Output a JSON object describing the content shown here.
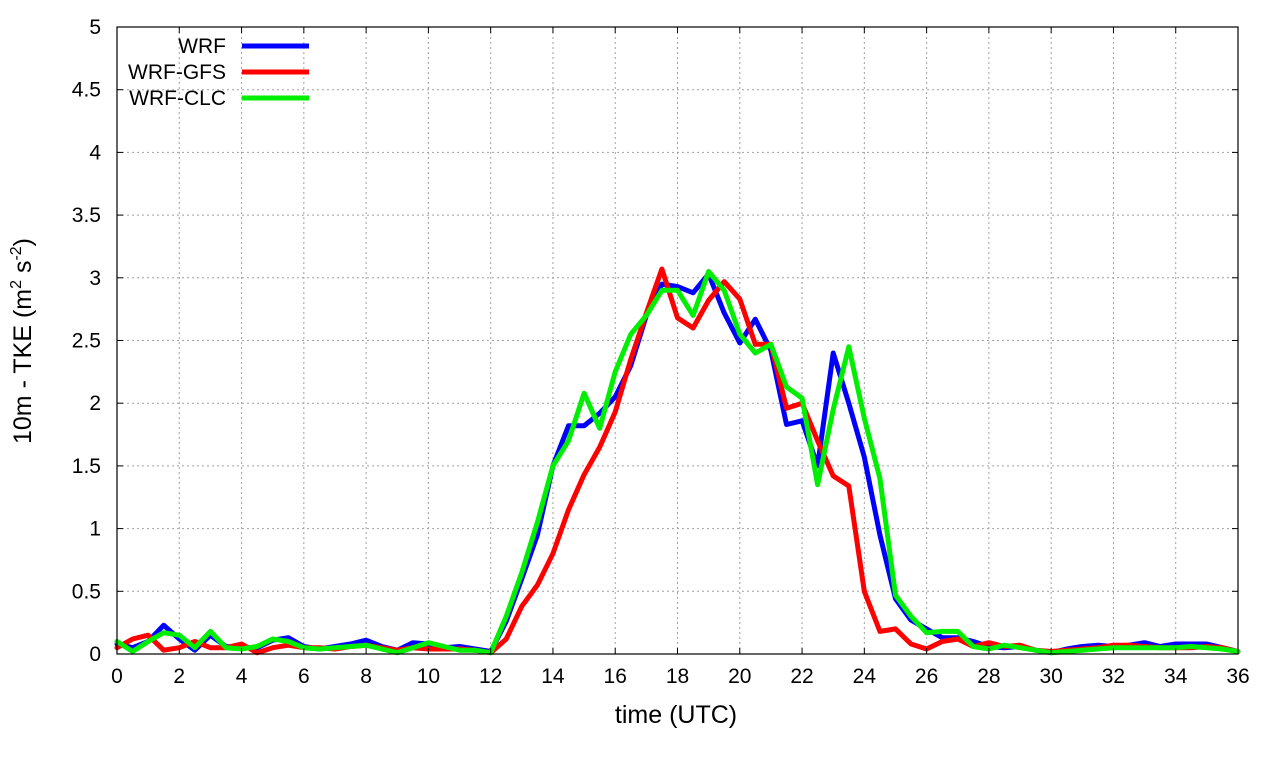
{
  "chart_data": {
    "type": "line",
    "title": "",
    "xlabel": "time (UTC)",
    "ylabel": {
      "prefix": "10m - TKE (m",
      "exp1": "2",
      "middle": " s",
      "exp2": "-2",
      "suffix": ")"
    },
    "xlim": [
      0,
      36
    ],
    "ylim": [
      0,
      5
    ],
    "grid": true,
    "legend_position": "top-left",
    "x_ticks": [
      "0",
      "2",
      "4",
      "6",
      "8",
      "10",
      "12",
      "14",
      "16",
      "18",
      "20",
      "22",
      "24",
      "26",
      "28",
      "30",
      "32",
      "34",
      "36"
    ],
    "y_ticks": [
      "0",
      "0.5",
      "1",
      "1.5",
      "2",
      "2.5",
      "3",
      "3.5",
      "4",
      "4.5",
      "5"
    ],
    "x": [
      0,
      0.5,
      1,
      1.5,
      2,
      2.5,
      3,
      3.5,
      4,
      4.5,
      5,
      5.5,
      6,
      6.5,
      7,
      7.5,
      8,
      8.5,
      9,
      9.5,
      10,
      10.5,
      11,
      11.5,
      12,
      12.5,
      13,
      13.5,
      14,
      14.5,
      15,
      15.5,
      16,
      16.5,
      17,
      17.5,
      18,
      18.5,
      19,
      19.5,
      20,
      20.5,
      21,
      21.5,
      22,
      22.5,
      23,
      23.5,
      24,
      24.5,
      25,
      25.5,
      26,
      26.5,
      27,
      27.5,
      28,
      28.5,
      29,
      29.5,
      30,
      30.5,
      31,
      31.5,
      32,
      32.5,
      33,
      33.5,
      34,
      34.5,
      35,
      35.5,
      36
    ],
    "series": [
      {
        "name": "WRF",
        "color": "#0000ff",
        "values": [
          0.08,
          0.05,
          0.1,
          0.23,
          0.12,
          0.03,
          0.15,
          0.06,
          0.05,
          0.05,
          0.11,
          0.13,
          0.06,
          0.04,
          0.06,
          0.08,
          0.11,
          0.06,
          0.03,
          0.09,
          0.08,
          0.05,
          0.06,
          0.04,
          0.02,
          0.26,
          0.6,
          0.95,
          1.5,
          1.82,
          1.82,
          1.92,
          2.05,
          2.3,
          2.7,
          2.95,
          2.93,
          2.88,
          3.03,
          2.72,
          2.48,
          2.67,
          2.42,
          1.83,
          1.86,
          1.5,
          2.4,
          2.0,
          1.57,
          0.95,
          0.44,
          0.27,
          0.2,
          0.13,
          0.13,
          0.1,
          0.06,
          0.05,
          0.06,
          0.03,
          0.01,
          0.04,
          0.06,
          0.07,
          0.06,
          0.07,
          0.09,
          0.06,
          0.08,
          0.08,
          0.08,
          0.05,
          0.02
        ]
      },
      {
        "name": "WRF-GFS",
        "color": "#ff0000",
        "values": [
          0.05,
          0.12,
          0.15,
          0.03,
          0.05,
          0.1,
          0.05,
          0.05,
          0.08,
          0.01,
          0.05,
          0.07,
          0.05,
          0.05,
          0.04,
          0.06,
          0.07,
          0.05,
          0.03,
          0.05,
          0.04,
          0.04,
          0.04,
          0.03,
          0.01,
          0.12,
          0.38,
          0.55,
          0.8,
          1.15,
          1.43,
          1.65,
          1.93,
          2.35,
          2.72,
          3.07,
          2.68,
          2.6,
          2.82,
          2.97,
          2.83,
          2.47,
          2.47,
          1.96,
          2.0,
          1.7,
          1.42,
          1.34,
          0.5,
          0.18,
          0.2,
          0.08,
          0.04,
          0.1,
          0.12,
          0.06,
          0.09,
          0.06,
          0.07,
          0.03,
          0.02,
          0.03,
          0.04,
          0.05,
          0.07,
          0.07,
          0.06,
          0.05,
          0.05,
          0.05,
          0.06,
          0.05,
          0.02
        ]
      },
      {
        "name": "WRF-CLC",
        "color": "#00ee00",
        "values": [
          0.1,
          0.02,
          0.1,
          0.17,
          0.15,
          0.05,
          0.18,
          0.05,
          0.04,
          0.06,
          0.12,
          0.1,
          0.05,
          0.04,
          0.05,
          0.06,
          0.07,
          0.04,
          0.01,
          0.05,
          0.09,
          0.06,
          0.03,
          0.03,
          0.01,
          0.3,
          0.65,
          1.05,
          1.5,
          1.7,
          2.08,
          1.8,
          2.25,
          2.55,
          2.7,
          2.9,
          2.9,
          2.7,
          3.05,
          2.9,
          2.55,
          2.4,
          2.47,
          2.13,
          2.04,
          1.35,
          1.95,
          2.45,
          1.88,
          1.4,
          0.47,
          0.3,
          0.17,
          0.18,
          0.18,
          0.06,
          0.04,
          0.07,
          0.05,
          0.03,
          0.01,
          0.02,
          0.03,
          0.04,
          0.05,
          0.05,
          0.05,
          0.05,
          0.05,
          0.06,
          0.05,
          0.04,
          0.02
        ]
      }
    ]
  }
}
